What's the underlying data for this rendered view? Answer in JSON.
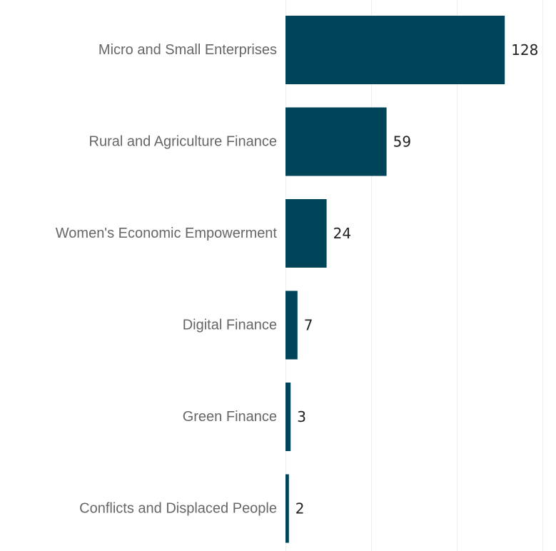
{
  "chart_data": {
    "type": "bar",
    "orientation": "horizontal",
    "categories": [
      "Micro and Small Enterprises",
      "Rural and Agriculture Finance",
      "Women's Economic Empowerment",
      "Digital Finance",
      "Green Finance",
      "Conflicts and Displaced People"
    ],
    "values": [
      128,
      59,
      24,
      7,
      3,
      2
    ],
    "title": "",
    "xlabel": "",
    "ylabel": "",
    "xlim": [
      0,
      150
    ],
    "grid": true,
    "legend": "none",
    "data_labels": true,
    "bar_color": "#004459",
    "gridline_values": [
      0,
      50,
      100,
      150
    ]
  }
}
